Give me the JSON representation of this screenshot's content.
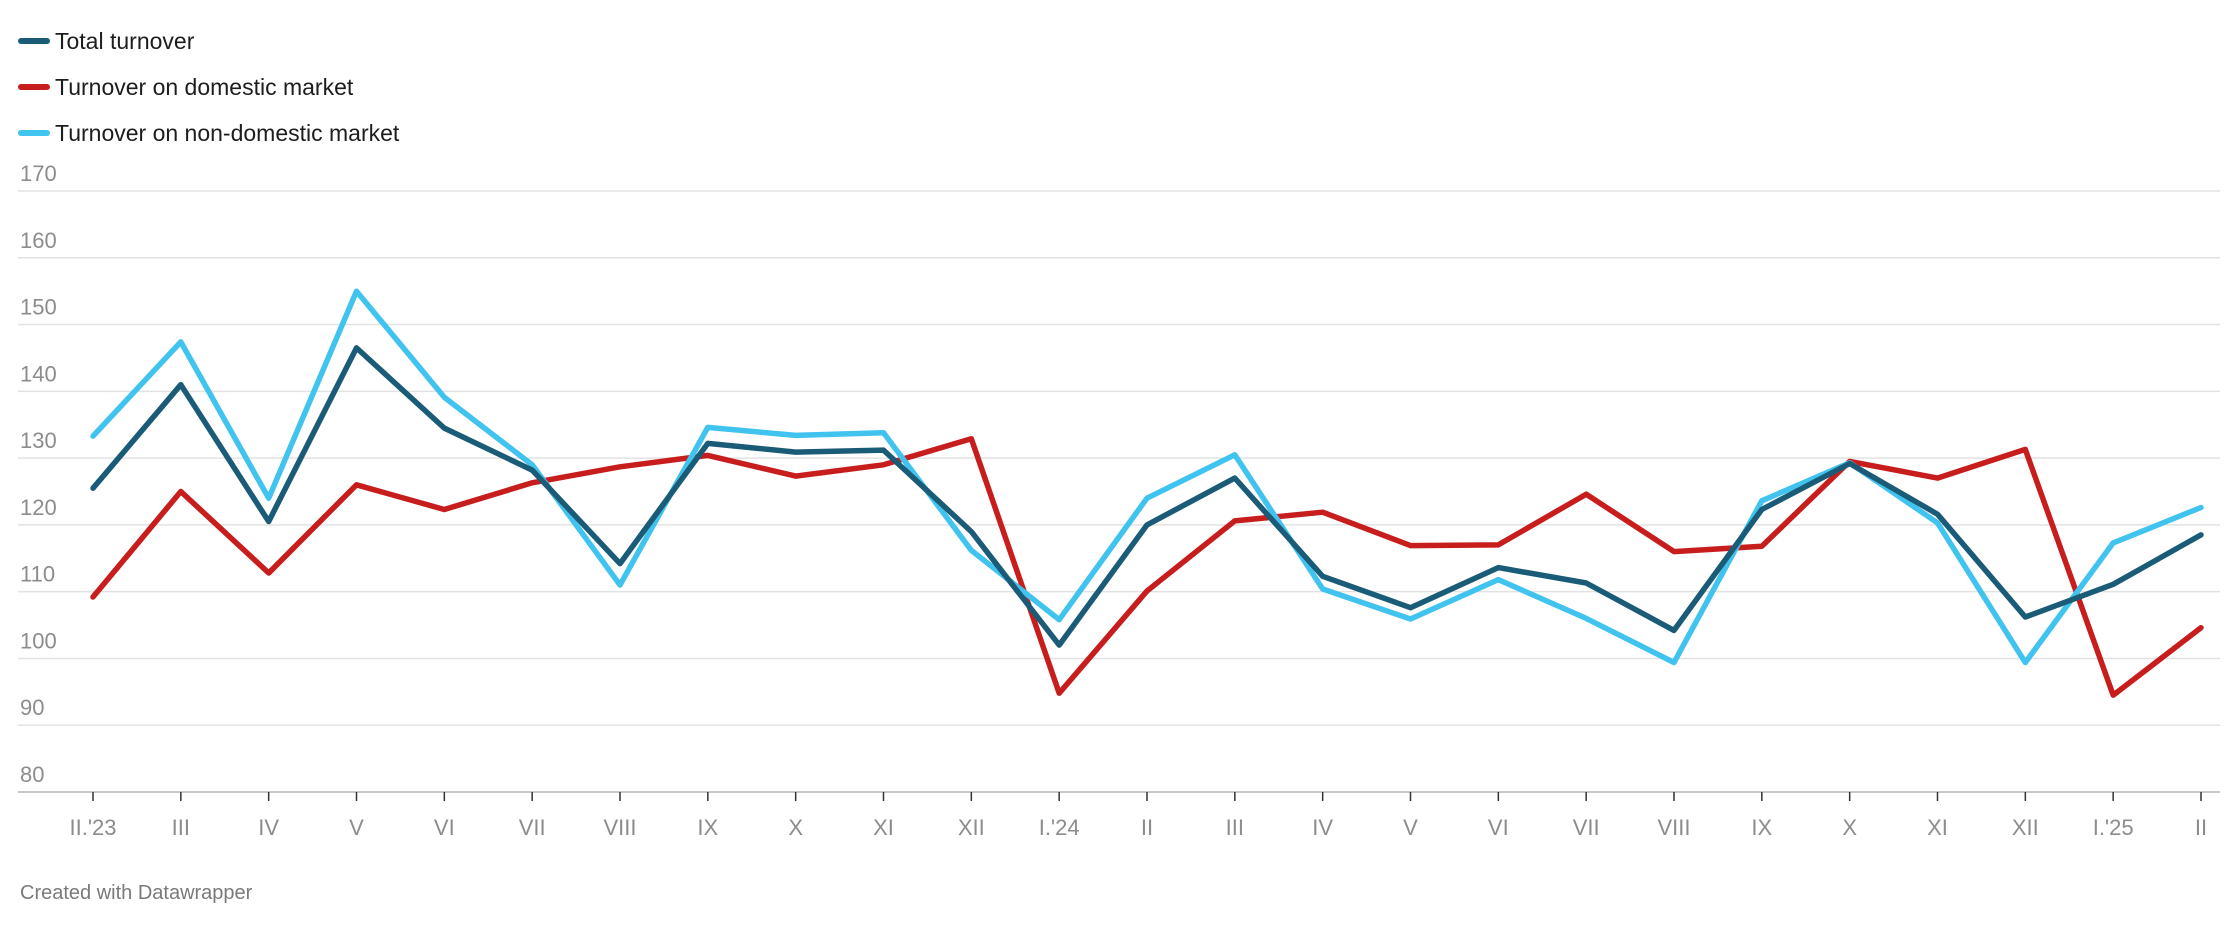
{
  "chart_data": {
    "type": "line",
    "title": "",
    "xlabel": "",
    "ylabel": "",
    "ylim": [
      80,
      170
    ],
    "yticks": [
      80,
      90,
      100,
      110,
      120,
      130,
      140,
      150,
      160,
      170
    ],
    "grid": true,
    "legend_position": "top-left",
    "categories": [
      "II.'23",
      "III",
      "IV",
      "V",
      "VI",
      "VII",
      "VIII",
      "IX",
      "X",
      "XI",
      "XII",
      "I.'24",
      "II",
      "III",
      "IV",
      "V",
      "VI",
      "VII",
      "VIII",
      "IX",
      "X",
      "XI",
      "XII",
      "I.'25",
      "II"
    ],
    "series": [
      {
        "name": "Total turnover",
        "color": "#1a5c78",
        "values": [
          125.5,
          141,
          120.5,
          146.5,
          134.5,
          128.2,
          114.2,
          132.2,
          130.9,
          131.2,
          119,
          102,
          120,
          127,
          112.3,
          107.6,
          113.6,
          111.3,
          104.2,
          122.3,
          129.2,
          121.6,
          106.2,
          111.1,
          118.5
        ]
      },
      {
        "name": "Turnover on domestic market",
        "color": "#c71e1d",
        "values": [
          109.2,
          125,
          112.8,
          126,
          122.3,
          126.3,
          128.7,
          130.4,
          127.3,
          129,
          132.9,
          94.8,
          110.1,
          120.6,
          121.9,
          116.9,
          117,
          124.6,
          116,
          116.8,
          129.5,
          127,
          131.3,
          94.5,
          104.6
        ]
      },
      {
        "name": "Turnover on non-domestic market",
        "color": "#41c3ef",
        "values": [
          133.3,
          147.4,
          124,
          155,
          139.1,
          129,
          111,
          134.6,
          133.4,
          133.8,
          116.2,
          105.8,
          124,
          130.5,
          110.4,
          105.9,
          111.8,
          106,
          99.4,
          123.6,
          129.3,
          120.3,
          99.4,
          117.3,
          122.6
        ]
      }
    ]
  },
  "footer": {
    "credit": "Created with Datawrapper"
  }
}
